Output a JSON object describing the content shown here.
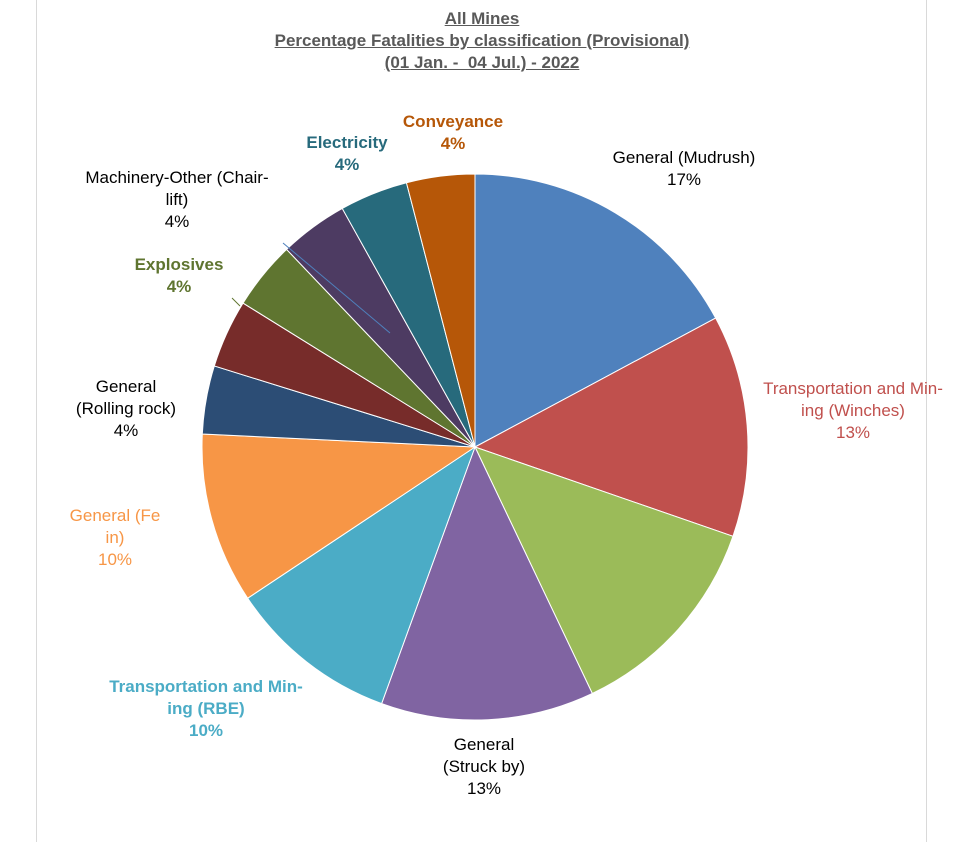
{
  "chart_data": {
    "type": "pie",
    "title_lines": [
      "All Mines",
      "Percentage Fatalities by classification (Provisional)",
      "(01 Jan. -  04 Jul.) - 2022"
    ],
    "slices": [
      {
        "label_lines": [
          "General (Mudrush)"
        ],
        "percent_label": "17%",
        "value": 17,
        "color": "#4F81BD",
        "label_color": "#000000",
        "bold": false
      },
      {
        "label_lines": [
          "Transportation and Min-",
          "ing (Winches)"
        ],
        "percent_label": "13%",
        "value": 13,
        "color": "#C0504D",
        "label_color": "#C0504D",
        "bold": false
      },
      {
        "label_lines": [],
        "percent_label": "",
        "value": 12.5,
        "color": "#9BBB59",
        "label_color": "#9BBB59",
        "bold": false
      },
      {
        "label_lines": [
          "General",
          "(Struck by)"
        ],
        "percent_label": "13%",
        "value": 12.5,
        "color": "#8064A2",
        "label_color": "#000000",
        "bold": false
      },
      {
        "label_lines": [
          "Transportation and Min-",
          "ing (RBE)"
        ],
        "percent_label": "10%",
        "value": 10,
        "color": "#4BACC6",
        "label_color": "#4BACC6",
        "bold": true
      },
      {
        "label_lines": [
          "General              (Fe",
          "in)"
        ],
        "percent_label": "10%",
        "value": 10,
        "color": "#F79646",
        "label_color": "#F79646",
        "bold": false
      },
      {
        "label_lines": [
          "General",
          "(Rolling rock)"
        ],
        "percent_label": "4%",
        "value": 4,
        "color": "#2C4D75",
        "label_color": "#000000",
        "bold": false
      },
      {
        "label_lines": [],
        "percent_label": "",
        "value": 4,
        "color": "#772C2A",
        "label_color": "#772C2A",
        "bold": false
      },
      {
        "label_lines": [
          "Explosives"
        ],
        "percent_label": "4%",
        "value": 4,
        "color": "#5F7530",
        "label_color": "#5F7530",
        "bold": true
      },
      {
        "label_lines": [
          "Machinery-Other (Chair-",
          "lift)"
        ],
        "percent_label": "4%",
        "value": 4,
        "color": "#4D3B62",
        "label_color": "#000000",
        "bold": false
      },
      {
        "label_lines": [
          "Electricity"
        ],
        "percent_label": "4%",
        "value": 4,
        "color": "#276A7C",
        "label_color": "#276A7C",
        "bold": true
      },
      {
        "label_lines": [
          "Conveyance"
        ],
        "percent_label": "4%",
        "value": 4,
        "color": "#B65708",
        "label_color": "#B65708",
        "bold": true
      }
    ]
  }
}
